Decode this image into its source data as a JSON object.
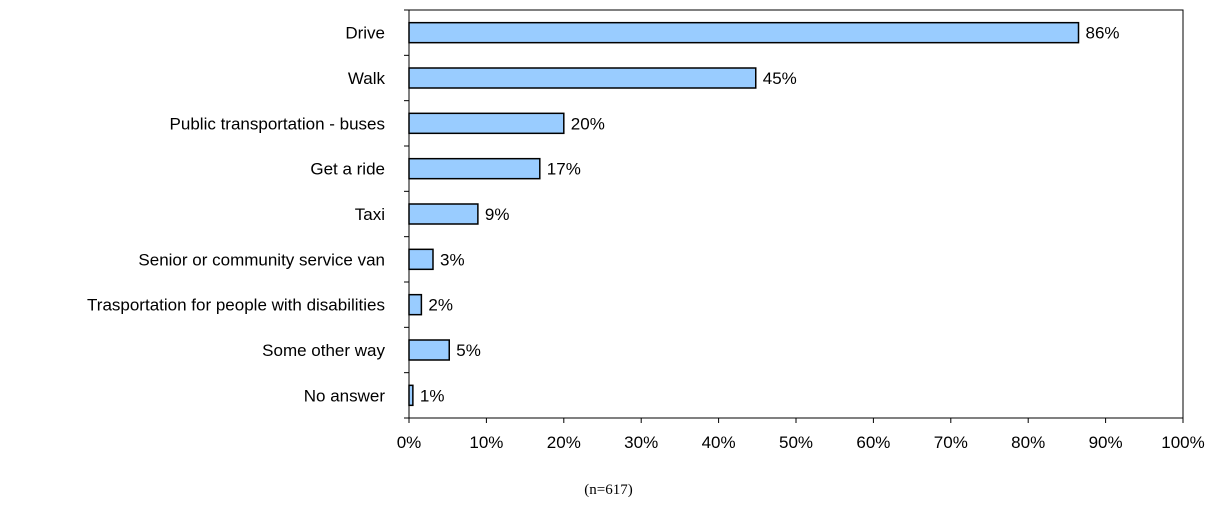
{
  "chart_data": {
    "type": "bar",
    "orientation": "horizontal",
    "categories": [
      "Drive",
      "Walk",
      "Public transportation - buses",
      "Get a ride",
      "Taxi",
      "Senior or community service van",
      "Trasportation for people with disabilities",
      "Some other way",
      "No answer"
    ],
    "values": [
      86.5,
      44.8,
      20.0,
      16.9,
      8.9,
      3.1,
      1.6,
      5.2,
      0.5
    ],
    "value_labels": [
      "86%",
      "45%",
      "20%",
      "17%",
      "9%",
      "3%",
      "2%",
      "5%",
      "1%"
    ],
    "xlim": [
      0,
      100
    ],
    "ticks": [
      0,
      10,
      20,
      30,
      40,
      50,
      60,
      70,
      80,
      90,
      100
    ],
    "tick_labels": [
      "0%",
      "10%",
      "20%",
      "30%",
      "40%",
      "50%",
      "60%",
      "70%",
      "80%",
      "90%",
      "100%"
    ],
    "bar_color": "#99ccff",
    "bar_border": "#000000",
    "grid": false,
    "legend": false,
    "note": "(n=617)"
  }
}
